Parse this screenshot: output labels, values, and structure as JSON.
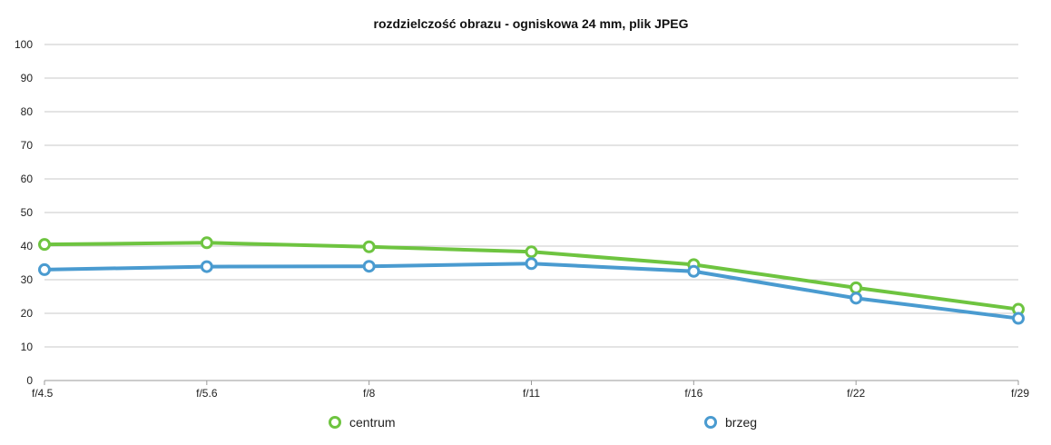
{
  "chart_data": {
    "type": "line",
    "title": "rozdzielczość obrazu - ogniskowa 24 mm, plik JPEG",
    "categories": [
      "f/4.5",
      "f/5.6",
      "f/8",
      "f/11",
      "f/16",
      "f/22",
      "f/29"
    ],
    "ylim": [
      0,
      100
    ],
    "yticks": [
      0,
      10,
      20,
      30,
      40,
      50,
      60,
      70,
      80,
      90,
      100
    ],
    "grid": true,
    "legend_position": "bottom",
    "series": [
      {
        "name": "centrum",
        "color": "#6ec440",
        "values": [
          40.5,
          41,
          39.8,
          38.3,
          34.5,
          27.6,
          21.2
        ]
      },
      {
        "name": "brzeg",
        "color": "#4a9bd0",
        "values": [
          33,
          33.9,
          34,
          34.8,
          32.5,
          24.5,
          18.5
        ]
      }
    ]
  }
}
